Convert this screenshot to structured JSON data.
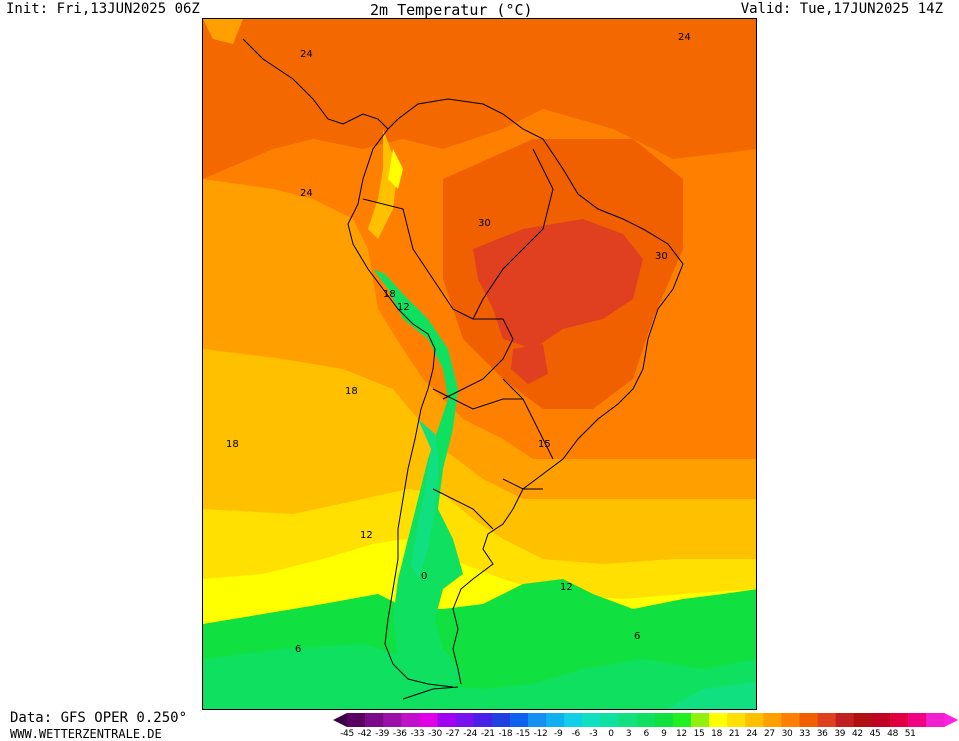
{
  "header": {
    "init": "Init: Fri,13JUN2025 06Z",
    "title": "2m Temperatur (°C)",
    "valid": "Valid: Tue,17JUN2025 14Z"
  },
  "footer": {
    "data_source": "Data: GFS OPER 0.250°",
    "website": "WWW.WETTERZENTRALE.DE"
  },
  "map": {
    "isotherm_labels": [
      "24",
      "24",
      "24",
      "30",
      "30",
      "18",
      "12",
      "18",
      "18",
      "15",
      "12",
      "12",
      "6",
      "0",
      "6"
    ]
  },
  "legend": {
    "labels": [
      "-45",
      "-42",
      "-39",
      "-36",
      "-33",
      "-30",
      "-27",
      "-24",
      "-21",
      "-18",
      "-15",
      "-12",
      "-9",
      "-6",
      "-3",
      "0",
      "3",
      "6",
      "9",
      "12",
      "15",
      "18",
      "21",
      "24",
      "27",
      "30",
      "33",
      "36",
      "39",
      "42",
      "45",
      "48",
      "51"
    ],
    "colors": [
      "#5a0062",
      "#7a0a8a",
      "#9b10a8",
      "#c010c8",
      "#e000e8",
      "#a000f0",
      "#7a10f0",
      "#4a20e8",
      "#2040e0",
      "#1060f0",
      "#1490f0",
      "#10b0f0",
      "#10d0e8",
      "#10e0c0",
      "#10e0a0",
      "#10e080",
      "#10e060",
      "#10e040",
      "#20f020",
      "#90f010",
      "#ffff00",
      "#ffe000",
      "#ffc000",
      "#ffa000",
      "#ff8000",
      "#f06000",
      "#e04020",
      "#c02020",
      "#b01010",
      "#c00020",
      "#e00040",
      "#f00080",
      "#f020d0"
    ],
    "left_arrow_color": "#3a0048",
    "right_arrow_color": "#ff20e0"
  }
}
